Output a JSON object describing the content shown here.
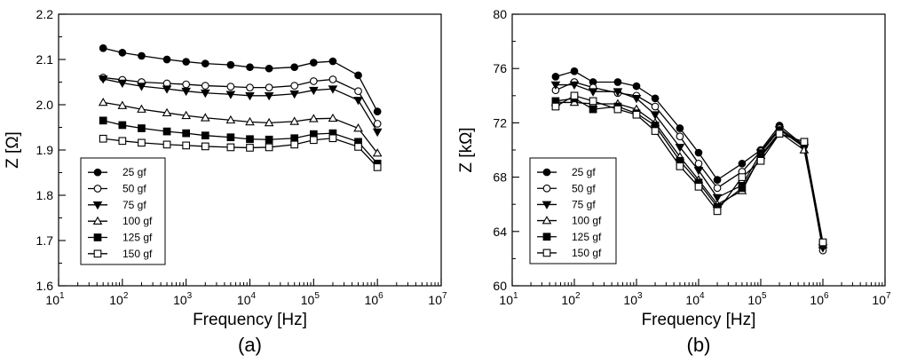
{
  "chart_data": [
    {
      "type": "line",
      "panel_label": "(a)",
      "xlabel": "Frequency [Hz]",
      "ylabel": "Z [Ω]",
      "x_scale": "log",
      "xlim": [
        10,
        10000000
      ],
      "ylim": [
        1.6,
        2.2
      ],
      "x_ticks": [
        10,
        100,
        1000,
        10000,
        100000,
        1000000,
        10000000
      ],
      "x_tick_labels": [
        {
          "base": "10",
          "exp": "1"
        },
        {
          "base": "10",
          "exp": "2"
        },
        {
          "base": "10",
          "exp": "3"
        },
        {
          "base": "10",
          "exp": "4"
        },
        {
          "base": "10",
          "exp": "5"
        },
        {
          "base": "10",
          "exp": "6"
        },
        {
          "base": "10",
          "exp": "7"
        }
      ],
      "y_ticks": [
        1.6,
        1.7,
        1.8,
        1.9,
        2.0,
        2.1,
        2.2
      ],
      "y_tick_labels": [
        "1.6",
        "1.7",
        "1.8",
        "1.9",
        "2.0",
        "2.1",
        "2.2"
      ],
      "grid": false,
      "legend_position": "bottom-left",
      "x": [
        50,
        100,
        200,
        500,
        1000,
        2000,
        5000,
        10000,
        20000,
        50000,
        100000,
        200000,
        500000,
        1000000
      ],
      "series": [
        {
          "name": "25 gf",
          "marker": "circle-filled",
          "values": [
            2.125,
            2.115,
            2.108,
            2.1,
            2.095,
            2.091,
            2.088,
            2.083,
            2.08,
            2.083,
            2.093,
            2.096,
            2.065,
            1.985
          ]
        },
        {
          "name": "50 gf",
          "marker": "circle-open",
          "values": [
            2.06,
            2.055,
            2.05,
            2.047,
            2.045,
            2.042,
            2.04,
            2.038,
            2.038,
            2.042,
            2.052,
            2.056,
            2.03,
            1.958
          ]
        },
        {
          "name": "75 gf",
          "marker": "triangle-down-filled",
          "values": [
            2.057,
            2.048,
            2.041,
            2.035,
            2.03,
            2.026,
            2.023,
            2.02,
            2.02,
            2.024,
            2.032,
            2.035,
            2.01,
            1.94
          ]
        },
        {
          "name": "100 gf",
          "marker": "triangle-up-open",
          "values": [
            2.005,
            1.998,
            1.99,
            1.982,
            1.976,
            1.971,
            1.966,
            1.962,
            1.96,
            1.963,
            1.969,
            1.97,
            1.948,
            1.893
          ]
        },
        {
          "name": "125 gf",
          "marker": "square-filled",
          "values": [
            1.965,
            1.955,
            1.948,
            1.941,
            1.937,
            1.932,
            1.928,
            1.924,
            1.923,
            1.926,
            1.935,
            1.937,
            1.918,
            1.87
          ]
        },
        {
          "name": "150 gf",
          "marker": "square-open",
          "values": [
            1.925,
            1.92,
            1.916,
            1.912,
            1.91,
            1.908,
            1.906,
            1.905,
            1.906,
            1.912,
            1.922,
            1.926,
            1.907,
            1.862
          ]
        }
      ]
    },
    {
      "type": "line",
      "panel_label": "(b)",
      "xlabel": "Frequency [Hz]",
      "ylabel": "Z [kΩ]",
      "x_scale": "log",
      "xlim": [
        10,
        10000000
      ],
      "ylim": [
        60,
        80
      ],
      "x_ticks": [
        10,
        100,
        1000,
        10000,
        100000,
        1000000,
        10000000
      ],
      "x_tick_labels": [
        {
          "base": "10",
          "exp": "1"
        },
        {
          "base": "10",
          "exp": "2"
        },
        {
          "base": "10",
          "exp": "3"
        },
        {
          "base": "10",
          "exp": "4"
        },
        {
          "base": "10",
          "exp": "5"
        },
        {
          "base": "10",
          "exp": "6"
        },
        {
          "base": "10",
          "exp": "7"
        }
      ],
      "y_ticks": [
        60,
        64,
        68,
        72,
        76,
        80
      ],
      "y_tick_labels": [
        "60",
        "64",
        "68",
        "72",
        "76",
        "80"
      ],
      "grid": false,
      "legend_position": "bottom-left",
      "x": [
        50,
        100,
        200,
        500,
        1000,
        2000,
        5000,
        10000,
        20000,
        50000,
        100000,
        200000,
        500000,
        1000000
      ],
      "series": [
        {
          "name": "25 gf",
          "marker": "circle-filled",
          "values": [
            75.4,
            75.8,
            75.0,
            75.0,
            74.7,
            73.8,
            71.6,
            69.8,
            67.8,
            69.0,
            70.0,
            71.8,
            70.3,
            63.0
          ]
        },
        {
          "name": "50 gf",
          "marker": "circle-open",
          "values": [
            74.4,
            75.0,
            74.6,
            74.2,
            74.0,
            73.2,
            71.0,
            69.0,
            67.2,
            68.4,
            69.9,
            71.6,
            70.3,
            62.6
          ]
        },
        {
          "name": "75 gf",
          "marker": "triangle-down-filled",
          "values": [
            74.8,
            74.8,
            74.3,
            74.3,
            73.8,
            72.6,
            70.2,
            68.5,
            66.5,
            67.4,
            69.8,
            71.5,
            70.2,
            62.8
          ]
        },
        {
          "name": "100 gf",
          "marker": "triangle-up-open",
          "values": [
            73.5,
            73.5,
            73.4,
            73.4,
            73.0,
            72.0,
            69.5,
            67.8,
            66.0,
            67.0,
            69.6,
            71.3,
            70.0,
            63.0
          ]
        },
        {
          "name": "125 gf",
          "marker": "square-filled",
          "values": [
            73.6,
            73.8,
            73.0,
            73.2,
            72.7,
            71.8,
            69.2,
            67.6,
            65.8,
            67.2,
            69.5,
            71.2,
            70.6,
            63.1
          ]
        },
        {
          "name": "150 gf",
          "marker": "square-open",
          "values": [
            73.2,
            74.0,
            73.6,
            73.0,
            72.6,
            71.4,
            68.8,
            67.3,
            65.5,
            68.0,
            69.2,
            71.2,
            70.6,
            63.2
          ]
        }
      ]
    }
  ]
}
